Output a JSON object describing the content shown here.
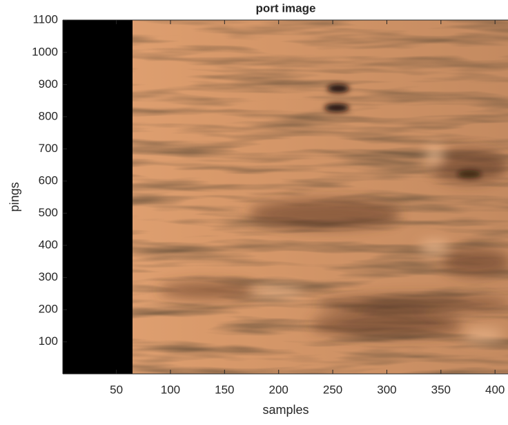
{
  "chart_data": {
    "type": "image",
    "title": "port image",
    "x_label": "samples",
    "y_label": "pings",
    "colormap": "copper",
    "xlim": [
      0.5,
      412
    ],
    "ylim": [
      0.5,
      1100.5
    ],
    "xticks": [
      50,
      100,
      150,
      200,
      250,
      300,
      350,
      400
    ],
    "yticks": [
      100,
      200,
      300,
      400,
      500,
      600,
      700,
      800,
      900,
      1000,
      1100
    ]
  }
}
